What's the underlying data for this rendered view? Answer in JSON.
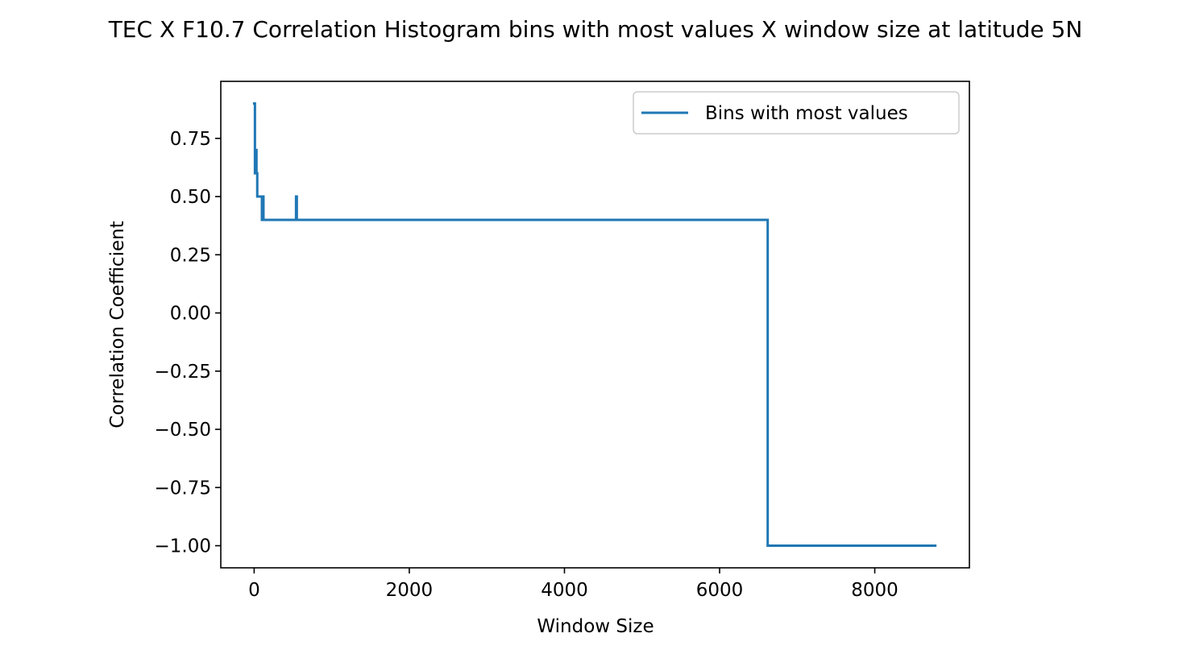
{
  "chart_data": {
    "type": "line",
    "title": "TEC X F10.7 Correlation Histogram bins with most values X window size at latitude 5N",
    "xlabel": "Window Size",
    "ylabel": "Correlation Coefficient",
    "xlim": [
      -430,
      9220
    ],
    "ylim": [
      -1.095,
      0.995
    ],
    "xticks": [
      0,
      2000,
      4000,
      6000,
      8000
    ],
    "xtick_labels": [
      "0",
      "2000",
      "4000",
      "6000",
      "8000"
    ],
    "yticks": [
      0.75,
      0.5,
      0.25,
      0.0,
      -0.25,
      -0.5,
      -0.75,
      -1.0
    ],
    "ytick_labels": [
      "0.75",
      "0.50",
      "0.25",
      "0.00",
      "−0.25",
      "−0.50",
      "−0.75",
      "−1.00"
    ],
    "grid": false,
    "legend": {
      "position": "top-right",
      "entries": [
        "Bins with most values"
      ]
    },
    "series": [
      {
        "name": "Bins with most values",
        "color": "#1f77b4",
        "x": [
          0,
          10,
          10,
          20,
          20,
          30,
          30,
          40,
          40,
          50,
          50,
          100,
          100,
          110,
          110,
          120,
          120,
          130,
          130,
          540,
          540,
          550,
          550,
          6620,
          6620,
          8780
        ],
        "y": [
          0.9,
          0.9,
          0.6,
          0.6,
          0.7,
          0.7,
          0.6,
          0.6,
          0.5,
          0.5,
          0.5,
          0.5,
          0.4,
          0.4,
          0.5,
          0.5,
          0.4,
          0.4,
          0.4,
          0.4,
          0.5,
          0.5,
          0.4,
          0.4,
          -1.0,
          -1.0
        ]
      }
    ]
  }
}
